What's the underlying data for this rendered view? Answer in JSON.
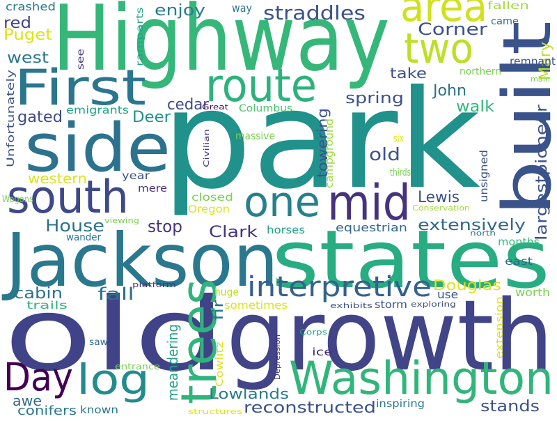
{
  "words": [
    "Highway",
    "park",
    "states",
    "Jackson",
    "old",
    "growth",
    "side",
    "First",
    "route",
    "south",
    "one",
    "mid",
    "area",
    "two",
    "built",
    "trees",
    "Washington",
    "Day",
    "log",
    "interpretive",
    "straddles",
    "enjoy",
    "crashed",
    "way",
    "fallen",
    "came",
    "Corner",
    "red",
    "Puget",
    "west",
    "Mary",
    "remnant",
    "northern",
    "take",
    "main",
    "John",
    "spring",
    "walk",
    "cedar",
    "emigrants",
    "gated",
    "Deer",
    "Great",
    "Columbus",
    "Unfortunately",
    "see",
    "ramparts",
    "Civilian",
    "massive",
    "towering",
    "campground",
    "old",
    "six",
    "largestpioneer",
    "unsigned",
    "thirds",
    "western",
    "year",
    "mere",
    "closed",
    "Oregon",
    "Lewis",
    "Wagons",
    "Conservation",
    "House",
    "viewing",
    "stop",
    "Clark",
    "horses",
    "equestrian",
    "extensively",
    "north",
    "wander",
    "months",
    "east",
    "cabin",
    "platform",
    "fall",
    "huge",
    "fir",
    "Douglas",
    "use",
    "worth",
    "trails",
    "sometimes",
    "storm",
    "exhibits",
    "exploring",
    "extension",
    "meandering",
    "Cowlitz",
    "Corps",
    "Depression",
    "saw",
    "ice",
    "entrance",
    "Lowlands",
    "awe",
    "reconstructed",
    "inspiring",
    "stands",
    "conifers",
    "known",
    "structures"
  ]
}
